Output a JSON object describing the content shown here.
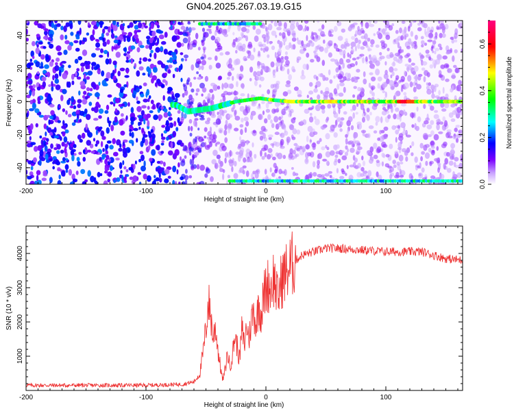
{
  "figure": {
    "title": "GN04.2025.267.03.19.G15"
  },
  "chart_data": [
    {
      "type": "heatmap",
      "xlabel": "Height of straight line (km)",
      "ylabel": "Frequency (Hz)",
      "xlim": [
        -200,
        164
      ],
      "ylim": [
        -50,
        49
      ],
      "xticks": [
        -200,
        -100,
        0,
        100
      ],
      "yticks": [
        -40,
        -20,
        0,
        20,
        40
      ],
      "colorbar": {
        "label": "Normalized spectral amplitude",
        "range": [
          0,
          0.7
        ],
        "ticks": [
          0.0,
          0.2,
          0.4,
          0.6
        ],
        "colormap": "white-purple-blue-cyan-green-yellow-red-magenta"
      },
      "features": [
        {
          "name": "main line",
          "x": [
            -75,
            -65,
            -55,
            -45,
            -35,
            -25,
            -15,
            -5,
            5,
            20,
            60,
            100,
            130,
            164
          ],
          "freq": [
            -2,
            -6,
            -5,
            -4,
            -2,
            0,
            1,
            2,
            1,
            0,
            0,
            0,
            0,
            0
          ]
        },
        {
          "name": "upper band",
          "x": [
            -55,
            -5
          ],
          "freq": 47
        },
        {
          "name": "lower band",
          "x": [
            -30,
            164
          ],
          "freq": -48
        }
      ]
    },
    {
      "type": "line",
      "xlabel": "Height of straight line (km)",
      "ylabel": "SNR (10 * v/v)",
      "xlim": [
        -200,
        164
      ],
      "ylim": [
        0,
        4800
      ],
      "xticks": [
        -200,
        -100,
        0,
        100
      ],
      "yticks": [
        1000,
        2000,
        3000,
        4000
      ],
      "color": "#ee3333",
      "series": [
        {
          "x": [
            -200,
            -150,
            -100,
            -70,
            -60,
            -55,
            -52,
            -50,
            -48,
            -46,
            -44,
            -42,
            -40,
            -38,
            -36,
            -34,
            -32,
            -30,
            -28,
            -26,
            -24,
            -22,
            -20,
            -18,
            -16,
            -14,
            -12,
            -10,
            -8,
            -6,
            -4,
            -2,
            0,
            2,
            4,
            6,
            8,
            10,
            12,
            14,
            16,
            18,
            20,
            25,
            30,
            40,
            50,
            60,
            80,
            100,
            120,
            130,
            140,
            150,
            164
          ],
          "y": [
            150,
            150,
            150,
            180,
            250,
            500,
            1200,
            1800,
            2600,
            2200,
            1500,
            1900,
            1200,
            700,
            300,
            600,
            1100,
            700,
            1000,
            1600,
            1300,
            900,
            1800,
            1300,
            1900,
            1500,
            2100,
            2300,
            1900,
            2600,
            2200,
            2700,
            3000,
            3100,
            3000,
            3300,
            3100,
            2600,
            3100,
            3300,
            3400,
            3500,
            3600,
            3800,
            3950,
            4050,
            4150,
            4150,
            4100,
            4050,
            4050,
            4050,
            3950,
            3850,
            3800
          ]
        }
      ]
    }
  ]
}
